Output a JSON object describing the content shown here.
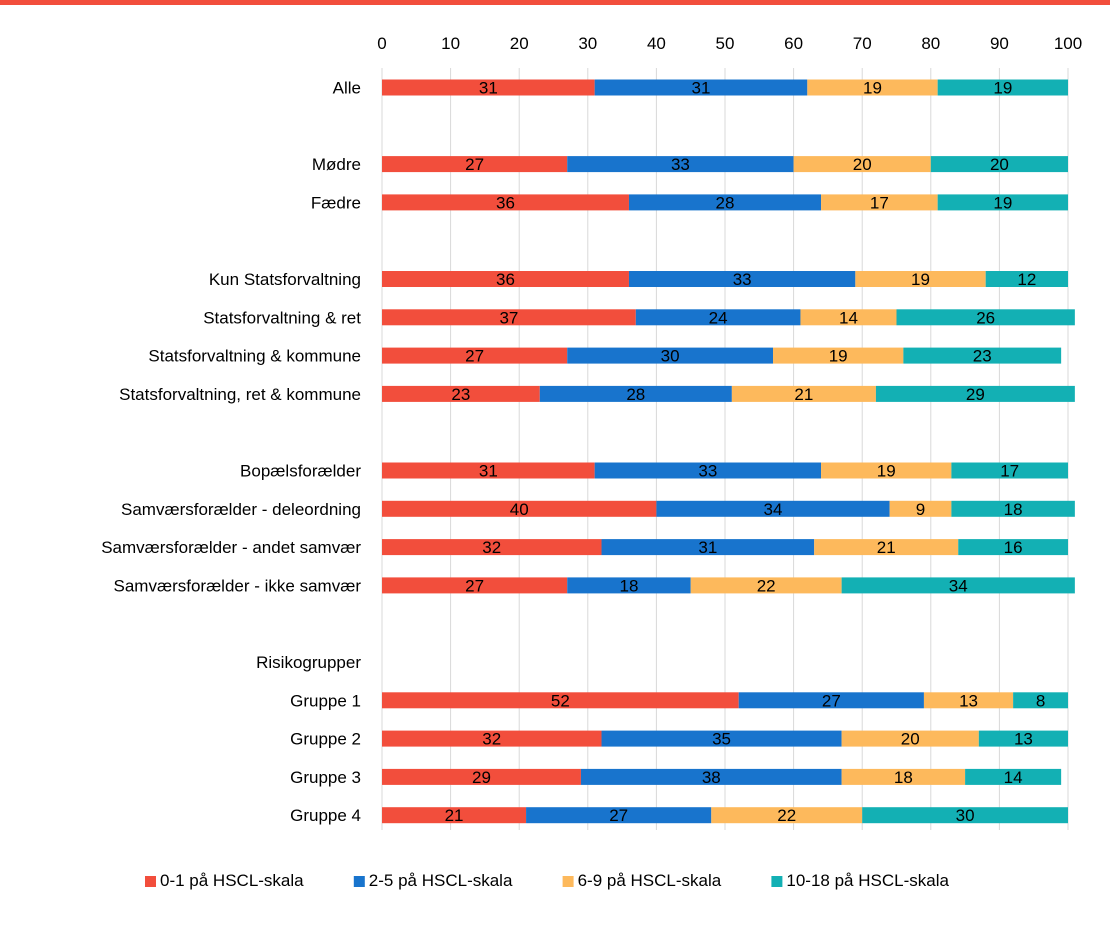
{
  "colors": {
    "top_rule": "#f24e3c",
    "grid": "#d9d9d9",
    "text": "#000000"
  },
  "chart_data": {
    "type": "bar",
    "orientation": "horizontal",
    "stacked": true,
    "title": "",
    "xlabel": "",
    "ylabel": "",
    "xlim": [
      0,
      100
    ],
    "x_ticks": [
      0,
      10,
      20,
      30,
      40,
      50,
      60,
      70,
      80,
      90,
      100
    ],
    "x_axis_position": "top",
    "grid": true,
    "legend_position": "bottom",
    "categories": [
      "Alle",
      "",
      "Mødre",
      "Fædre",
      "",
      "Kun Statsforvaltning",
      "Statsforvaltning & ret",
      "Statsforvaltning & kommune",
      "Statsforvaltning, ret & kommune",
      "",
      "Bopælsforælder",
      "Samværsforælder - deleordning",
      "Samværsforælder - andet samvær",
      "Samværsforælder - ikke samvær",
      "",
      "Risikogrupper",
      "Gruppe 1",
      "Gruppe 2",
      "Gruppe 3",
      "Gruppe 4"
    ],
    "series": [
      {
        "name": "0-1 på HSCL-skala",
        "color": "#f24e3c",
        "values": [
          31,
          null,
          27,
          36,
          null,
          36,
          37,
          27,
          23,
          null,
          31,
          40,
          32,
          27,
          null,
          null,
          52,
          32,
          29,
          21
        ]
      },
      {
        "name": "2-5 på HSCL-skala",
        "color": "#1874cd",
        "values": [
          31,
          null,
          33,
          28,
          null,
          33,
          24,
          30,
          28,
          null,
          33,
          34,
          31,
          18,
          null,
          null,
          27,
          35,
          38,
          27
        ]
      },
      {
        "name": "6-9 på HSCL-skala",
        "color": "#fdb95c",
        "values": [
          19,
          null,
          20,
          17,
          null,
          19,
          14,
          19,
          21,
          null,
          19,
          9,
          21,
          22,
          null,
          null,
          13,
          20,
          18,
          22
        ]
      },
      {
        "name": "10-18 på HSCL-skala",
        "color": "#13b0b4",
        "values": [
          19,
          null,
          20,
          19,
          null,
          12,
          26,
          23,
          29,
          null,
          17,
          18,
          16,
          34,
          null,
          null,
          8,
          13,
          14,
          30
        ]
      }
    ]
  }
}
